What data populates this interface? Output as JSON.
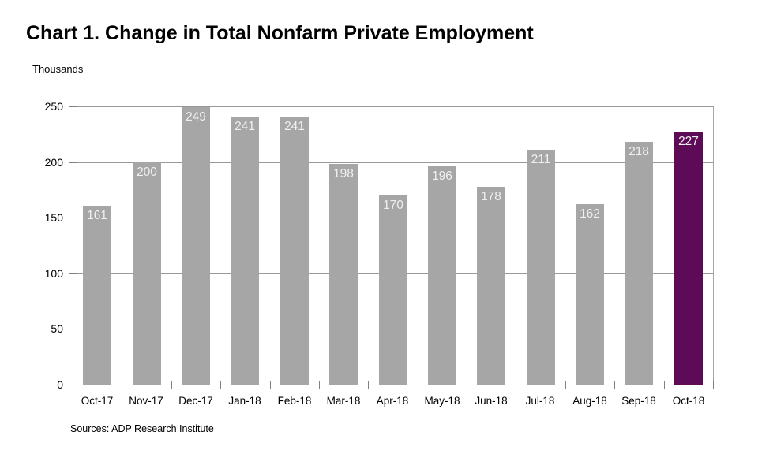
{
  "chart_data": {
    "type": "bar",
    "title": "Chart 1. Change in Total Nonfarm Private Employment",
    "unit_label": "Thousands",
    "categories": [
      "Oct-17",
      "Nov-17",
      "Dec-17",
      "Jan-18",
      "Feb-18",
      "Mar-18",
      "Apr-18",
      "May-18",
      "Jun-18",
      "Jul-18",
      "Aug-18",
      "Sep-18",
      "Oct-18"
    ],
    "values": [
      161,
      200,
      249,
      241,
      241,
      198,
      170,
      196,
      178,
      211,
      162,
      218,
      227
    ],
    "xlabel": "",
    "ylabel": "Thousands",
    "ylim": [
      0,
      250
    ],
    "yticks": [
      0,
      50,
      100,
      150,
      200,
      250
    ],
    "grid": true,
    "legend_position": "none",
    "bar_color_default": "#a6a6a6",
    "bar_color_highlight": "#5e0b57",
    "highlight_index": 12,
    "value_label_color": "#f0f0f0",
    "axis_color": "#808080",
    "gridline_color": "#999999",
    "source": "Sources: ADP Research Institute"
  }
}
